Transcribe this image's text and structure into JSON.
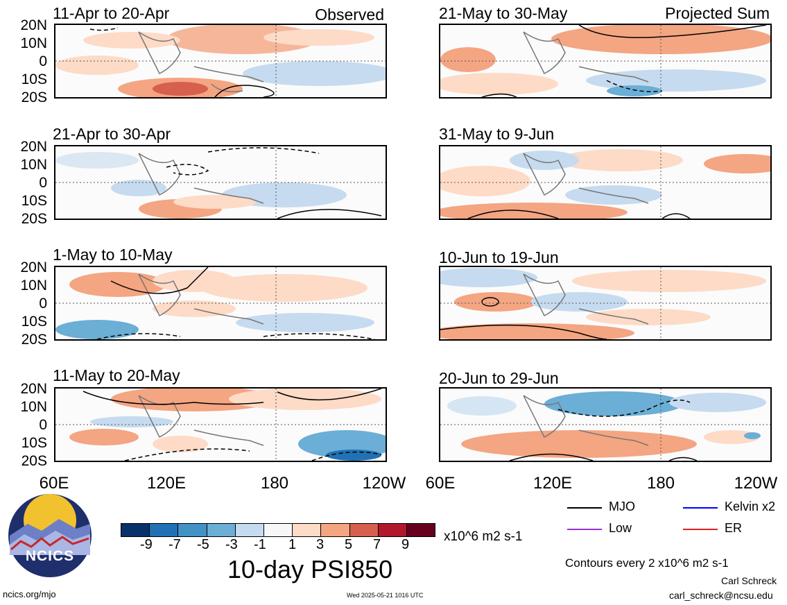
{
  "panels": [
    {
      "title": "11-Apr to 20-Apr",
      "tag": "Observed"
    },
    {
      "title": "21-Apr to 30-Apr",
      "tag": ""
    },
    {
      "title": "1-May to 10-May",
      "tag": ""
    },
    {
      "title": "11-May to 20-May",
      "tag": ""
    },
    {
      "title": "21-May to 30-May",
      "tag": "Projected Sum"
    },
    {
      "title": "31-May to 9-Jun",
      "tag": ""
    },
    {
      "title": "10-Jun to 19-Jun",
      "tag": ""
    },
    {
      "title": "20-Jun to 29-Jun",
      "tag": ""
    }
  ],
  "lat_labels": [
    "20N",
    "10N",
    "0",
    "10S",
    "20S"
  ],
  "lon_labels": [
    "60E",
    "120E",
    "180",
    "120W"
  ],
  "colorbar": {
    "colors": [
      "#08306b",
      "#2171b5",
      "#4292c6",
      "#6baed6",
      "#c6dbef",
      "#f7f7f7",
      "#fddbc7",
      "#f4a582",
      "#d6604d",
      "#b2182b",
      "#67001f"
    ],
    "tick_labels": [
      "-9",
      "-7",
      "-5",
      "-3",
      "-1",
      "1",
      "3",
      "5",
      "7",
      "9"
    ],
    "units": "x10^6 m2 s-1"
  },
  "main_title": "10-day PSI850",
  "legend": {
    "items": [
      {
        "label": "MJO",
        "color": "#000000"
      },
      {
        "label": "Kelvin x2",
        "color": "#0000ff"
      },
      {
        "label": "Low",
        "color": "#9b30d9"
      },
      {
        "label": "ER",
        "color": "#e02020"
      }
    ],
    "contour_note": "Contours every 2 x10^6 m2 s-1"
  },
  "logo": {
    "text": "NCICS"
  },
  "footer": {
    "url": "ncics.org/mjo",
    "timestamp": "Wed 2025-05-21 1016 UTC",
    "author": "Carl Schreck",
    "email": "carl_schreck@ncsu.edu"
  }
}
